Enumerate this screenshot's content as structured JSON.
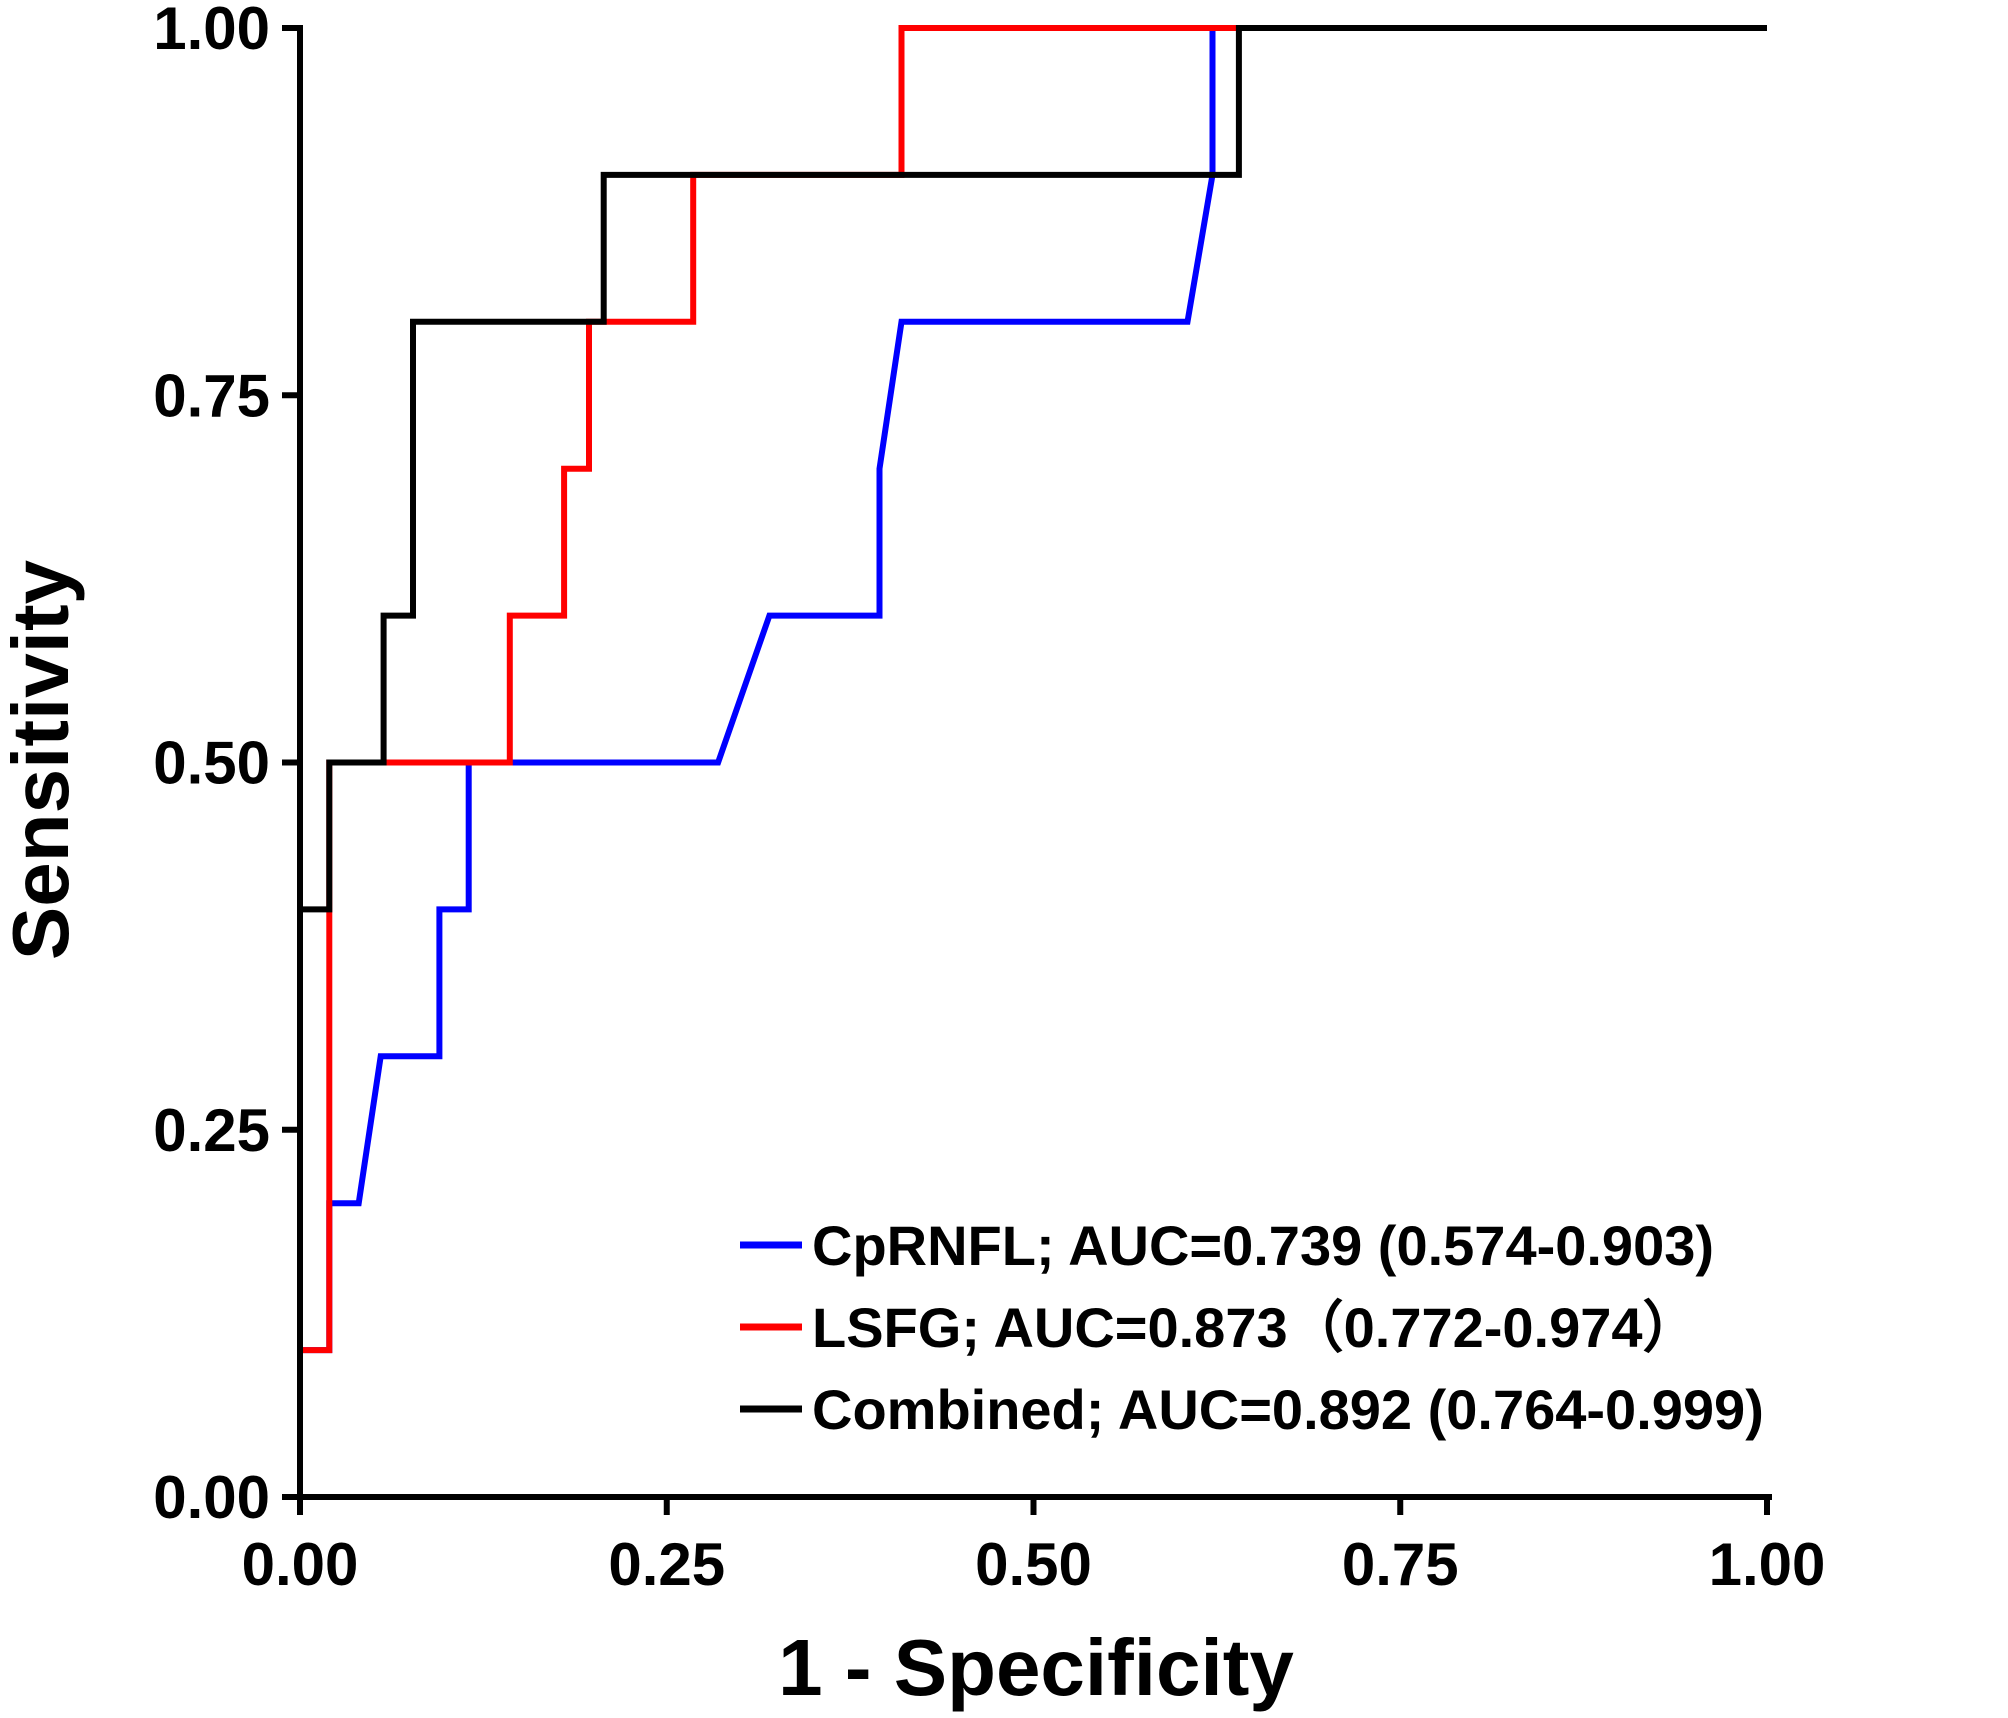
{
  "chart_data": {
    "type": "line",
    "title": "",
    "xlabel": "1 - Specificity",
    "ylabel": "Sensitivity",
    "xlim": [
      0,
      1
    ],
    "ylim": [
      0,
      1
    ],
    "x_ticks": [
      "0.00",
      "0.25",
      "0.50",
      "0.75",
      "1.00"
    ],
    "y_ticks": [
      "0.00",
      "0.25",
      "0.50",
      "0.75",
      "1.00"
    ],
    "grid": false,
    "legend_position": "bottom-right",
    "series": [
      {
        "name": "CpRNFL; AUC=0.739 (0.574-0.903)",
        "color": "#0000ff",
        "points": [
          [
            0,
            0
          ],
          [
            0,
            0.1
          ],
          [
            0.02,
            0.1
          ],
          [
            0.02,
            0.2
          ],
          [
            0.04,
            0.2
          ],
          [
            0.055,
            0.3
          ],
          [
            0.095,
            0.3
          ],
          [
            0.095,
            0.4
          ],
          [
            0.115,
            0.4
          ],
          [
            0.115,
            0.5
          ],
          [
            0.285,
            0.5
          ],
          [
            0.32,
            0.6
          ],
          [
            0.395,
            0.6
          ],
          [
            0.395,
            0.7
          ],
          [
            0.41,
            0.8
          ],
          [
            0.605,
            0.8
          ],
          [
            0.622,
            0.9
          ],
          [
            0.622,
            1.0
          ]
        ]
      },
      {
        "name": "LSFG; AUC=0.873（0.772-0.974）",
        "color": "#ff0000",
        "points": [
          [
            0,
            0
          ],
          [
            0,
            0.1
          ],
          [
            0.02,
            0.1
          ],
          [
            0.02,
            0.5
          ],
          [
            0.143,
            0.5
          ],
          [
            0.143,
            0.6
          ],
          [
            0.18,
            0.6
          ],
          [
            0.18,
            0.7
          ],
          [
            0.197,
            0.7
          ],
          [
            0.197,
            0.8
          ],
          [
            0.268,
            0.8
          ],
          [
            0.268,
            0.9
          ],
          [
            0.41,
            0.9
          ],
          [
            0.41,
            1.0
          ],
          [
            0.64,
            1.0
          ]
        ]
      },
      {
        "name": "Combined; AUC=0.892 (0.764-0.999)",
        "color": "#000000",
        "points": [
          [
            0,
            0
          ],
          [
            0,
            0.4
          ],
          [
            0.02,
            0.4
          ],
          [
            0.02,
            0.5
          ],
          [
            0.057,
            0.5
          ],
          [
            0.057,
            0.6
          ],
          [
            0.077,
            0.6
          ],
          [
            0.077,
            0.8
          ],
          [
            0.207,
            0.8
          ],
          [
            0.207,
            0.9
          ],
          [
            0.64,
            0.9
          ],
          [
            0.64,
            1.0
          ],
          [
            1.0,
            1.0
          ]
        ]
      }
    ]
  }
}
